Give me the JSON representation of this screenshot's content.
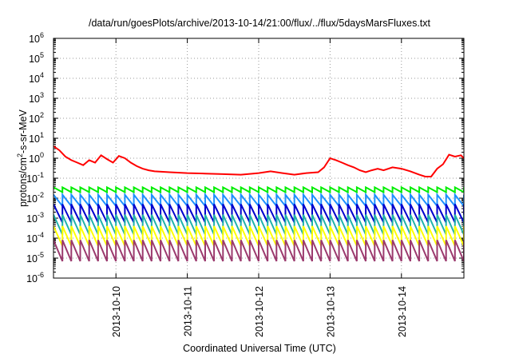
{
  "chart_data": {
    "type": "line",
    "title": "/data/run/goesPlots/archive/2013-10-14/21:00/flux/../flux/5daysMarsFluxes.txt",
    "xlabel": "Coordinated Universal Time (UTC)",
    "ylabel": {
      "base": "protons/cm",
      "sup": "2",
      "rest": "-s-sr-MeV"
    },
    "yscale": "log",
    "xlim": [
      "2013-10-09T03:00",
      "2013-10-14T21:00"
    ],
    "ylim": [
      1e-06,
      1000000.0
    ],
    "x_ticks": [
      "2013-10-10",
      "2013-10-11",
      "2013-10-12",
      "2013-10-13",
      "2013-10-14"
    ],
    "y_ticks": [
      {
        "base": "10",
        "exp": "-6"
      },
      {
        "base": "10",
        "exp": "-5"
      },
      {
        "base": "10",
        "exp": "-4"
      },
      {
        "base": "10",
        "exp": "-3"
      },
      {
        "base": "10",
        "exp": "-2"
      },
      {
        "base": "10",
        "exp": "-1"
      },
      {
        "base": "10",
        "exp": "0"
      },
      {
        "base": "10",
        "exp": "1"
      },
      {
        "base": "10",
        "exp": "2"
      },
      {
        "base": "10",
        "exp": "3"
      },
      {
        "base": "10",
        "exp": "4"
      },
      {
        "base": "10",
        "exp": "5"
      },
      {
        "base": "10",
        "exp": "6"
      }
    ],
    "grid": true,
    "grid_style": "dotted",
    "legend": "none",
    "sawtooth_period_hours": 3,
    "series": [
      {
        "color": "#ff0000",
        "style": "steps",
        "points": [
          [
            "2013-10-09T03:00",
            4.0
          ],
          [
            "2013-10-09T05:00",
            2.5
          ],
          [
            "2013-10-09T07:00",
            1.2
          ],
          [
            "2013-10-09T09:00",
            0.8
          ],
          [
            "2013-10-09T11:00",
            0.6
          ],
          [
            "2013-10-09T13:00",
            0.45
          ],
          [
            "2013-10-09T15:00",
            0.8
          ],
          [
            "2013-10-09T17:00",
            0.6
          ],
          [
            "2013-10-09T19:00",
            1.4
          ],
          [
            "2013-10-09T21:00",
            0.9
          ],
          [
            "2013-10-09T23:00",
            0.6
          ],
          [
            "2013-10-10T01:00",
            1.3
          ],
          [
            "2013-10-10T03:00",
            1.0
          ],
          [
            "2013-10-10T05:00",
            0.6
          ],
          [
            "2013-10-10T07:00",
            0.4
          ],
          [
            "2013-10-10T09:00",
            0.3
          ],
          [
            "2013-10-10T11:00",
            0.25
          ],
          [
            "2013-10-10T13:00",
            0.22
          ],
          [
            "2013-10-10T18:00",
            0.2
          ],
          [
            "2013-10-11T00:00",
            0.18
          ],
          [
            "2013-10-11T06:00",
            0.17
          ],
          [
            "2013-10-11T12:00",
            0.16
          ],
          [
            "2013-10-11T18:00",
            0.15
          ],
          [
            "2013-10-12T00:00",
            0.18
          ],
          [
            "2013-10-12T04:00",
            0.22
          ],
          [
            "2013-10-12T08:00",
            0.18
          ],
          [
            "2013-10-12T12:00",
            0.15
          ],
          [
            "2013-10-12T16:00",
            0.18
          ],
          [
            "2013-10-12T20:00",
            0.2
          ],
          [
            "2013-10-12T22:00",
            0.35
          ],
          [
            "2013-10-13T00:00",
            1.0
          ],
          [
            "2013-10-13T02:00",
            0.8
          ],
          [
            "2013-10-13T04:00",
            0.6
          ],
          [
            "2013-10-13T06:00",
            0.45
          ],
          [
            "2013-10-13T08:00",
            0.35
          ],
          [
            "2013-10-13T10:00",
            0.25
          ],
          [
            "2013-10-13T12:00",
            0.2
          ],
          [
            "2013-10-13T14:00",
            0.25
          ],
          [
            "2013-10-13T16:00",
            0.3
          ],
          [
            "2013-10-13T18:00",
            0.25
          ],
          [
            "2013-10-13T21:00",
            0.35
          ],
          [
            "2013-10-14T00:00",
            0.3
          ],
          [
            "2013-10-14T03:00",
            0.22
          ],
          [
            "2013-10-14T06:00",
            0.15
          ],
          [
            "2013-10-14T08:00",
            0.12
          ],
          [
            "2013-10-14T10:00",
            0.12
          ],
          [
            "2013-10-14T12:00",
            0.3
          ],
          [
            "2013-10-14T14:00",
            0.5
          ],
          [
            "2013-10-14T16:00",
            1.5
          ],
          [
            "2013-10-14T18:00",
            1.2
          ],
          [
            "2013-10-14T20:00",
            1.4
          ],
          [
            "2013-10-14T21:00",
            1.0
          ]
        ]
      },
      {
        "color": "#00ee00",
        "style": "sawtooth",
        "high_start": 0.035,
        "high_end": 0.035,
        "low": 0.02
      },
      {
        "color": "#1e90ff",
        "style": "sawtooth",
        "high_start": 0.015,
        "high_end": 0.015,
        "low": 0.004
      },
      {
        "color": "#0000cd",
        "style": "sawtooth",
        "high_start": 0.005,
        "high_end": 0.005,
        "low": 0.0006
      },
      {
        "color": "#20b2aa",
        "style": "sawtooth",
        "high_start": 0.0015,
        "high_end": 0.0015,
        "low": 0.00015
      },
      {
        "color": "#ffff00",
        "style": "sawtooth",
        "high_start": 0.0004,
        "high_end": 0.0004,
        "low": 4e-05
      },
      {
        "color": "#9b3a6e",
        "style": "sawtooth",
        "high_start": 8e-05,
        "high_end": 8e-05,
        "low": 7e-06
      }
    ]
  }
}
